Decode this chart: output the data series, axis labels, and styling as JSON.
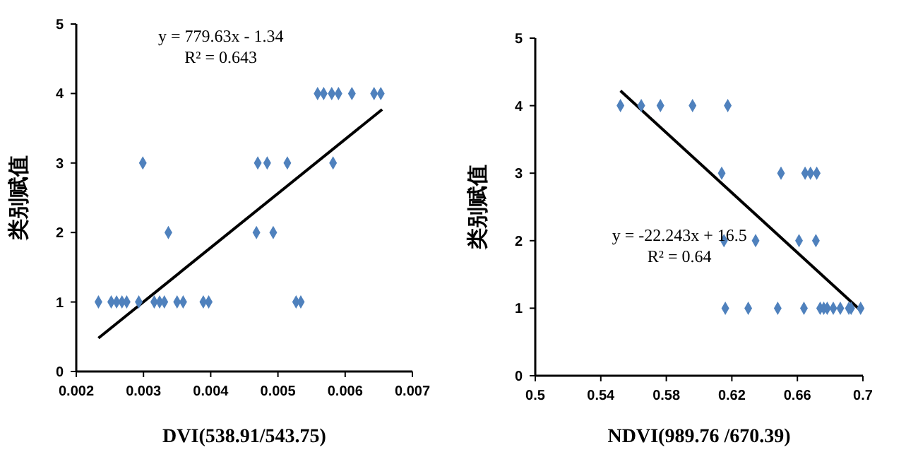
{
  "chart_data": [
    {
      "type": "scatter",
      "xlabel": "DVI(538.91/543.75)",
      "ylabel": "类别赋值",
      "xlim": [
        0.002,
        0.007
      ],
      "ylim": [
        0,
        5
      ],
      "xticks": [
        0.002,
        0.003,
        0.004,
        0.005,
        0.006,
        0.007
      ],
      "yticks": [
        0,
        1,
        2,
        3,
        4,
        5
      ],
      "annotations": [
        "y = 779.63x - 1.34",
        "R² = 0.643"
      ],
      "series": [
        {
          "marker": "diamond",
          "color": "#4f81bd",
          "x": [
            0.00559,
            0.00568,
            0.0058,
            0.0059,
            0.0061,
            0.00643,
            0.00653,
            0.00299,
            0.0047,
            0.00484,
            0.00514,
            0.00582,
            0.00337,
            0.00468,
            0.00493,
            0.00233,
            0.00252,
            0.0026,
            0.00268,
            0.00275,
            0.00293,
            0.00316,
            0.00324,
            0.00331,
            0.0035,
            0.00359,
            0.00389,
            0.00397,
            0.00527,
            0.00534
          ],
          "values": [
            4,
            4,
            4,
            4,
            4,
            4,
            4,
            3,
            3,
            3,
            3,
            3,
            2,
            2,
            2,
            1,
            1,
            1,
            1,
            1,
            1,
            1,
            1,
            1,
            1,
            1,
            1,
            1,
            1,
            1
          ]
        },
        {
          "type": "line",
          "color": "#000000",
          "x": [
            0.00233,
            0.00655
          ],
          "values": [
            0.48,
            3.77
          ]
        }
      ]
    },
    {
      "type": "scatter",
      "xlabel": "NDVI(989.76 /670.39)",
      "ylabel": "类别赋值",
      "xlim": [
        0.5,
        0.7
      ],
      "ylim": [
        0,
        5
      ],
      "xticks": [
        0.5,
        0.54,
        0.58,
        0.62,
        0.66,
        0.7
      ],
      "yticks": [
        0,
        1,
        2,
        3,
        4,
        5
      ],
      "annotations": [
        "y = -22.243x + 16.5",
        "R² = 0.64"
      ],
      "series": [
        {
          "marker": "diamond",
          "color": "#4f81bd",
          "x": [
            0.552,
            0.5647,
            0.5764,
            0.596,
            0.6175,
            0.6138,
            0.65,
            0.6647,
            0.668,
            0.6718,
            0.6152,
            0.6345,
            0.661,
            0.6713,
            0.616,
            0.63,
            0.648,
            0.664,
            0.6739,
            0.6761,
            0.6782,
            0.6819,
            0.6862,
            0.6914,
            0.6928,
            0.6986
          ],
          "values": [
            4,
            4,
            4,
            4,
            4,
            3,
            3,
            3,
            3,
            3,
            2,
            2,
            2,
            2,
            1,
            1,
            1,
            1,
            1,
            1,
            1,
            1,
            1,
            1,
            1,
            1
          ]
        },
        {
          "type": "line",
          "color": "#000000",
          "x": [
            0.552,
            0.698
          ],
          "values": [
            4.22,
            0.98
          ]
        }
      ]
    }
  ]
}
